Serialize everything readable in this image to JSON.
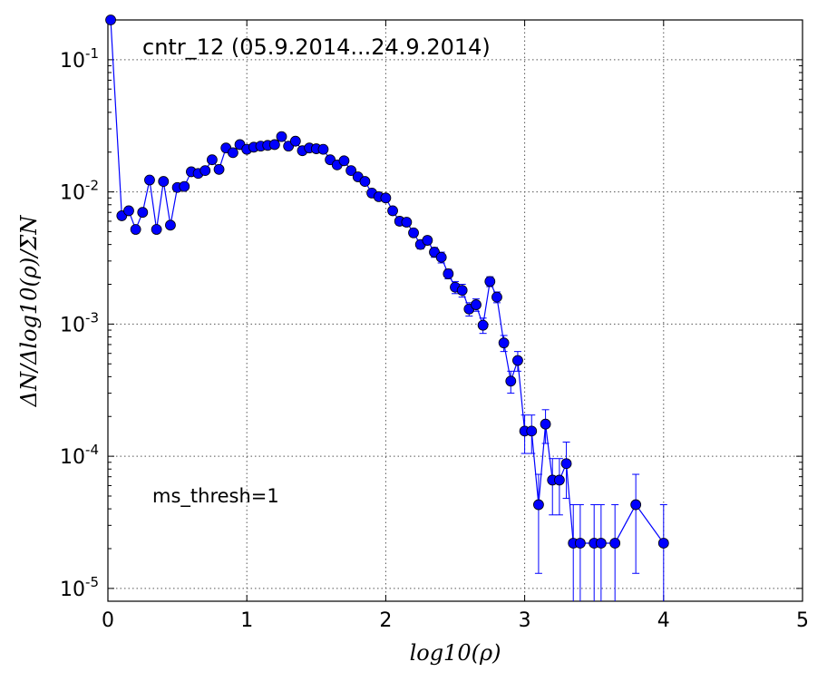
{
  "chart_data": {
    "type": "scatter",
    "title": "",
    "annotations": [
      "cntr_12 (05.9.2014...24.9.2014)",
      "ms_thresh=1"
    ],
    "xlabel": "log10(ρ)",
    "ylabel": "ΔN/Δlog10(ρ)/ΣN",
    "xlim": [
      0,
      5
    ],
    "ylim": [
      8e-06,
      0.2
    ],
    "yscale": "log",
    "grid": true,
    "legend": "none",
    "x_ticks": [
      0,
      1,
      2,
      3,
      4,
      5
    ],
    "x_tick_labels": [
      "0",
      "1",
      "2",
      "3",
      "4",
      "5"
    ],
    "y_ticks": [
      1e-05,
      0.0001,
      0.001,
      0.01,
      0.1
    ],
    "y_tick_labels": [
      {
        "base": "10",
        "exp": "-5"
      },
      {
        "base": "10",
        "exp": "-4"
      },
      {
        "base": "10",
        "exp": "-3"
      },
      {
        "base": "10",
        "exp": "-2"
      },
      {
        "base": "10",
        "exp": "-1"
      }
    ],
    "series": [
      {
        "color": "#0000ff",
        "marker": "circle",
        "x": [
          0.02,
          0.1,
          0.15,
          0.2,
          0.25,
          0.3,
          0.35,
          0.4,
          0.45,
          0.5,
          0.55,
          0.6,
          0.65,
          0.7,
          0.75,
          0.8,
          0.85,
          0.9,
          0.95,
          1.0,
          1.05,
          1.1,
          1.15,
          1.2,
          1.25,
          1.3,
          1.35,
          1.4,
          1.45,
          1.5,
          1.55,
          1.6,
          1.65,
          1.7,
          1.75,
          1.8,
          1.85,
          1.9,
          1.95,
          2.0,
          2.05,
          2.1,
          2.15,
          2.2,
          2.25,
          2.3,
          2.35,
          2.4,
          2.45,
          2.5,
          2.55,
          2.6,
          2.65,
          2.7,
          2.75,
          2.8,
          2.85,
          2.9,
          2.95,
          3.0,
          3.05,
          3.1,
          3.15,
          3.2,
          3.25,
          3.3,
          3.35,
          3.4,
          3.5,
          3.55,
          3.65,
          3.8,
          4.0
        ],
        "y": [
          0.2,
          0.0066,
          0.0072,
          0.0052,
          0.007,
          0.0123,
          0.0052,
          0.012,
          0.0056,
          0.0108,
          0.011,
          0.0142,
          0.0138,
          0.0145,
          0.0175,
          0.0148,
          0.0215,
          0.0198,
          0.0228,
          0.021,
          0.0218,
          0.0222,
          0.0225,
          0.0228,
          0.0262,
          0.0222,
          0.0242,
          0.0205,
          0.0215,
          0.0212,
          0.021,
          0.0175,
          0.016,
          0.0172,
          0.0145,
          0.013,
          0.012,
          0.0098,
          0.0092,
          0.009,
          0.0072,
          0.006,
          0.0059,
          0.0049,
          0.004,
          0.0043,
          0.0035,
          0.0032,
          0.0024,
          0.0019,
          0.0018,
          0.0013,
          0.0014,
          0.00098,
          0.0021,
          0.0016,
          0.00072,
          0.00037,
          0.00053,
          0.000155,
          0.000155,
          4.3e-05,
          0.000175,
          6.6e-05,
          6.6e-05,
          8.8e-05,
          2.2e-05,
          2.2e-05,
          2.2e-05,
          2.2e-05,
          2.2e-05,
          4.3e-05,
          2.2e-05
        ],
        "y_error": [
          0,
          0.0004,
          0.0004,
          0.0003,
          0.0004,
          0.0006,
          0.0003,
          0.0006,
          0.0003,
          0.0005,
          0.0005,
          0.0006,
          0.0006,
          0.0006,
          0.0007,
          0.0006,
          0.0008,
          0.0007,
          0.0008,
          0.0008,
          0.0008,
          0.0008,
          0.0008,
          0.0008,
          0.0009,
          0.0008,
          0.0009,
          0.0008,
          0.0008,
          0.0008,
          0.0008,
          0.0007,
          0.0007,
          0.0007,
          0.0006,
          0.0006,
          0.0006,
          0.0005,
          0.0005,
          0.0005,
          0.0004,
          0.0004,
          0.0004,
          0.0003,
          0.0003,
          0.0003,
          0.0003,
          0.0003,
          0.0002,
          0.0002,
          0.0002,
          0.00015,
          0.00015,
          0.00013,
          0.00018,
          0.00015,
          0.0001,
          7e-05,
          9e-05,
          5e-05,
          5e-05,
          3e-05,
          5e-05,
          3e-05,
          3e-05,
          4e-05,
          2.1e-05,
          2.1e-05,
          2.1e-05,
          2.1e-05,
          2.1e-05,
          3e-05,
          2.1e-05
        ]
      }
    ]
  }
}
